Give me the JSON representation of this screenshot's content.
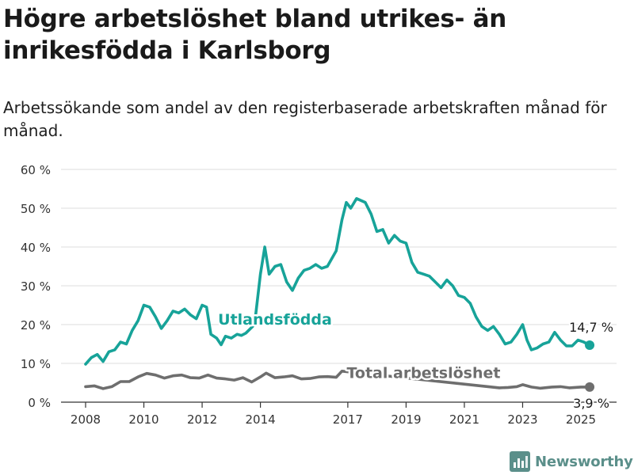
{
  "header": {
    "title": "Högre arbetslöshet bland utrikes- än inrikesfödda i Karlsborg",
    "subtitle": "Arbetssökande som andel av den registerbaserade arbetskraften månad för månad."
  },
  "brand": {
    "name": "Newsworthy",
    "icon": "newsworthy-chart-logo-icon",
    "color": "#5b8f8a"
  },
  "colors": {
    "foreign": "#17a399",
    "total": "#6e6e6e",
    "grid": "#dcdcdc",
    "axis": "#333333"
  },
  "chart_data": {
    "type": "line",
    "title": "Högre arbetslöshet bland utrikes- än inrikesfödda i Karlsborg",
    "subtitle": "Arbetssökande som andel av den registerbaserade arbetskraften månad för månad.",
    "xlabel": "",
    "ylabel": "",
    "xlim": [
      2008.0,
      2025.4
    ],
    "ylim": [
      0,
      60
    ],
    "grid": true,
    "x_ticks": [
      {
        "value": 2008,
        "label": "2008"
      },
      {
        "value": 2010,
        "label": "2010"
      },
      {
        "value": 2012,
        "label": "2012"
      },
      {
        "value": 2014,
        "label": "2014"
      },
      {
        "value": 2017,
        "label": "2017"
      },
      {
        "value": 2019,
        "label": "2019"
      },
      {
        "value": 2021,
        "label": "2021"
      },
      {
        "value": 2023,
        "label": "2023"
      },
      {
        "value": 2025,
        "label": "2025"
      }
    ],
    "y_ticks": [
      {
        "value": 0,
        "label": "0 %"
      },
      {
        "value": 10,
        "label": "10 %"
      },
      {
        "value": 20,
        "label": "20 %"
      },
      {
        "value": 30,
        "label": "30 %"
      },
      {
        "value": 40,
        "label": "40 %"
      },
      {
        "value": 50,
        "label": "50 %"
      },
      {
        "value": 60,
        "label": "60 %"
      }
    ],
    "series": [
      {
        "name": "Utlandsfödda",
        "color": "#17a399",
        "end_label": "14,7 %",
        "points": [
          [
            2008.0,
            9.8
          ],
          [
            2008.2,
            11.5
          ],
          [
            2008.4,
            12.3
          ],
          [
            2008.6,
            10.5
          ],
          [
            2008.8,
            13.0
          ],
          [
            2009.0,
            13.5
          ],
          [
            2009.2,
            15.5
          ],
          [
            2009.4,
            15.0
          ],
          [
            2009.6,
            18.5
          ],
          [
            2009.8,
            21.0
          ],
          [
            2010.0,
            25.0
          ],
          [
            2010.2,
            24.5
          ],
          [
            2010.4,
            22.0
          ],
          [
            2010.6,
            19.0
          ],
          [
            2010.8,
            21.0
          ],
          [
            2011.0,
            23.5
          ],
          [
            2011.2,
            23.0
          ],
          [
            2011.4,
            24.0
          ],
          [
            2011.6,
            22.5
          ],
          [
            2011.8,
            21.5
          ],
          [
            2012.0,
            25.0
          ],
          [
            2012.15,
            24.5
          ],
          [
            2012.3,
            17.5
          ],
          [
            2012.5,
            16.5
          ],
          [
            2012.65,
            14.8
          ],
          [
            2012.8,
            17.0
          ],
          [
            2013.0,
            16.5
          ],
          [
            2013.2,
            17.5
          ],
          [
            2013.35,
            17.2
          ],
          [
            2013.5,
            17.8
          ],
          [
            2013.8,
            20.0
          ],
          [
            2014.0,
            33.0
          ],
          [
            2014.15,
            40.0
          ],
          [
            2014.3,
            33.0
          ],
          [
            2014.5,
            35.0
          ],
          [
            2014.7,
            35.5
          ],
          [
            2014.9,
            31.0
          ],
          [
            2015.1,
            28.8
          ],
          [
            2015.3,
            32.0
          ],
          [
            2015.5,
            34.0
          ],
          [
            2015.7,
            34.5
          ],
          [
            2015.9,
            35.5
          ],
          [
            2016.1,
            34.5
          ],
          [
            2016.3,
            35.0
          ],
          [
            2016.6,
            39.0
          ],
          [
            2016.8,
            47.0
          ],
          [
            2016.95,
            51.5
          ],
          [
            2017.1,
            50.0
          ],
          [
            2017.3,
            52.5
          ],
          [
            2017.6,
            51.5
          ],
          [
            2017.8,
            48.5
          ],
          [
            2018.0,
            44.0
          ],
          [
            2018.2,
            44.5
          ],
          [
            2018.4,
            41.0
          ],
          [
            2018.6,
            43.0
          ],
          [
            2018.8,
            41.5
          ],
          [
            2019.0,
            41.0
          ],
          [
            2019.2,
            36.0
          ],
          [
            2019.4,
            33.5
          ],
          [
            2019.6,
            33.0
          ],
          [
            2019.8,
            32.5
          ],
          [
            2020.0,
            31.0
          ],
          [
            2020.2,
            29.5
          ],
          [
            2020.4,
            31.5
          ],
          [
            2020.6,
            30.0
          ],
          [
            2020.8,
            27.5
          ],
          [
            2021.0,
            27.0
          ],
          [
            2021.2,
            25.5
          ],
          [
            2021.4,
            22.0
          ],
          [
            2021.6,
            19.5
          ],
          [
            2021.8,
            18.5
          ],
          [
            2022.0,
            19.5
          ],
          [
            2022.2,
            17.5
          ],
          [
            2022.4,
            15.0
          ],
          [
            2022.6,
            15.5
          ],
          [
            2022.8,
            17.5
          ],
          [
            2023.0,
            20.0
          ],
          [
            2023.15,
            16.0
          ],
          [
            2023.3,
            13.5
          ],
          [
            2023.5,
            14.0
          ],
          [
            2023.7,
            15.0
          ],
          [
            2023.9,
            15.5
          ],
          [
            2024.1,
            18.0
          ],
          [
            2024.3,
            16.0
          ],
          [
            2024.5,
            14.5
          ],
          [
            2024.7,
            14.5
          ],
          [
            2024.9,
            16.0
          ],
          [
            2025.1,
            15.5
          ],
          [
            2025.3,
            14.7
          ]
        ]
      },
      {
        "name": "Total arbetslöshet",
        "color": "#6e6e6e",
        "end_label": "3,9 %",
        "points": [
          [
            2008.0,
            4.0
          ],
          [
            2008.3,
            4.2
          ],
          [
            2008.6,
            3.5
          ],
          [
            2008.9,
            4.0
          ],
          [
            2009.2,
            5.3
          ],
          [
            2009.5,
            5.3
          ],
          [
            2009.8,
            6.5
          ],
          [
            2010.1,
            7.4
          ],
          [
            2010.4,
            7.0
          ],
          [
            2010.7,
            6.2
          ],
          [
            2011.0,
            6.8
          ],
          [
            2011.3,
            7.0
          ],
          [
            2011.6,
            6.3
          ],
          [
            2011.9,
            6.2
          ],
          [
            2012.2,
            7.0
          ],
          [
            2012.5,
            6.2
          ],
          [
            2012.8,
            6.0
          ],
          [
            2013.1,
            5.7
          ],
          [
            2013.4,
            6.3
          ],
          [
            2013.7,
            5.2
          ],
          [
            2014.0,
            6.5
          ],
          [
            2014.2,
            7.5
          ],
          [
            2014.5,
            6.3
          ],
          [
            2014.8,
            6.5
          ],
          [
            2015.1,
            6.8
          ],
          [
            2015.4,
            6.0
          ],
          [
            2015.7,
            6.1
          ],
          [
            2016.0,
            6.5
          ],
          [
            2016.3,
            6.6
          ],
          [
            2016.6,
            6.4
          ],
          [
            2016.8,
            8.0
          ],
          [
            2022.2,
            3.7
          ],
          [
            2022.5,
            3.8
          ],
          [
            2022.8,
            4.0
          ],
          [
            2023.0,
            4.5
          ],
          [
            2023.3,
            3.9
          ],
          [
            2023.6,
            3.6
          ],
          [
            2024.0,
            3.9
          ],
          [
            2024.3,
            4.0
          ],
          [
            2024.6,
            3.7
          ],
          [
            2025.0,
            3.9
          ],
          [
            2025.3,
            3.9
          ]
        ]
      }
    ],
    "annotations": [
      {
        "series": "Utlandsfödda",
        "text": "Utlandsfödda",
        "at": [
          2014.5,
          20.0
        ]
      },
      {
        "series": "Total arbetslöshet",
        "text": "Total arbetslöshet",
        "at": [
          2019.6,
          6.2
        ]
      }
    ]
  }
}
